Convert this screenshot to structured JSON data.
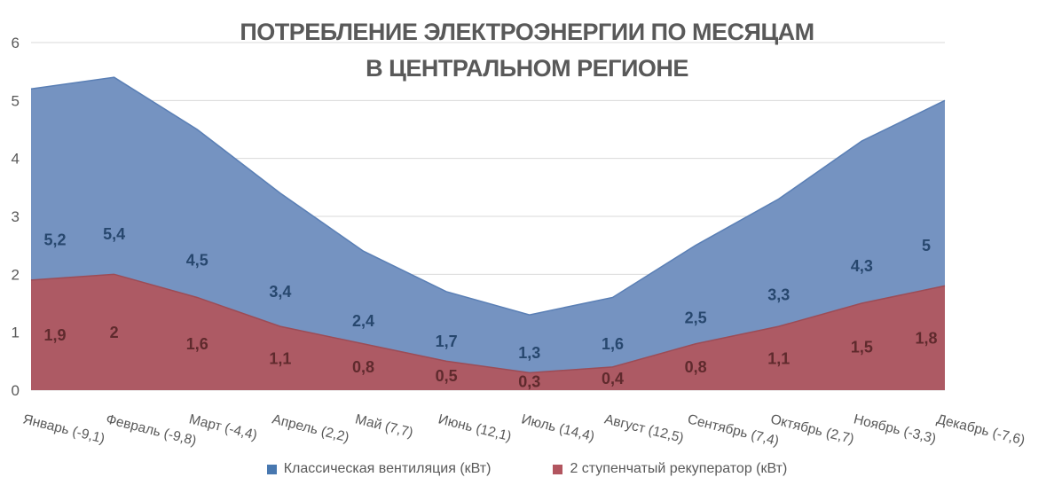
{
  "title": {
    "line1": "ПОТРЕБЛЕНИЕ ЭЛЕКТРОЭНЕРГИИ ПО МЕСЯЦАМ",
    "line2": "В ЦЕНТРАЛЬНОМ РЕГИОНЕ"
  },
  "chart_data": {
    "type": "area",
    "overlapping": true,
    "title": "ПОТРЕБЛЕНИЕ ЭЛЕКТРОЭНЕРГИИ ПО МЕСЯЦАМ В ЦЕНТРАЛЬНОМ РЕГИОНЕ",
    "categories": [
      "Январь (-9,1)",
      "Февраль (-9,8)",
      "Март (-4,4)",
      "Апрель (2,2)",
      "Май (7,7)",
      "Июнь (12,1)",
      "Июль (14,4)",
      "Август (12,5)",
      "Сентябрь (7,4)",
      "Октябрь (2,7)",
      "Ноябрь (-3,3)",
      "Декабрь (-7,6)"
    ],
    "series": [
      {
        "name": "Классическая вентиляция (кВт)",
        "values": [
          5.2,
          5.4,
          4.5,
          3.4,
          2.4,
          1.7,
          1.3,
          1.6,
          2.5,
          3.3,
          4.3,
          5
        ],
        "labels": [
          "5,2",
          "5,4",
          "4,5",
          "3,4",
          "2,4",
          "1,7",
          "1,3",
          "1,6",
          "2,5",
          "3,3",
          "4,3",
          "5"
        ],
        "fill": "#7593c1",
        "stroke": "#5a7fb5",
        "label_color": "#27476e",
        "swatch": "#4878b0"
      },
      {
        "name": "2 ступенчатый рекуператор (кВт)",
        "values": [
          1.9,
          2,
          1.6,
          1.1,
          0.8,
          0.5,
          0.3,
          0.4,
          0.8,
          1.1,
          1.5,
          1.8
        ],
        "labels": [
          "1,9",
          "2",
          "1,6",
          "1,1",
          "0,8",
          "0,5",
          "0,3",
          "0,4",
          "0,8",
          "1,1",
          "1,5",
          "1,8"
        ],
        "fill": "#ad5a64",
        "stroke": "#9c4c56",
        "label_color": "#5f2a2d",
        "swatch": "#b2555f"
      }
    ],
    "y_axis": {
      "min": 0,
      "max": 6,
      "step": 1,
      "ticks": [
        "0",
        "1",
        "2",
        "3",
        "4",
        "5",
        "6"
      ]
    },
    "x_label_rotation_deg": 14,
    "grid": true,
    "gridline_color": "#d9d9d9",
    "axis_label_color": "#595959",
    "legend_position": "bottom"
  }
}
